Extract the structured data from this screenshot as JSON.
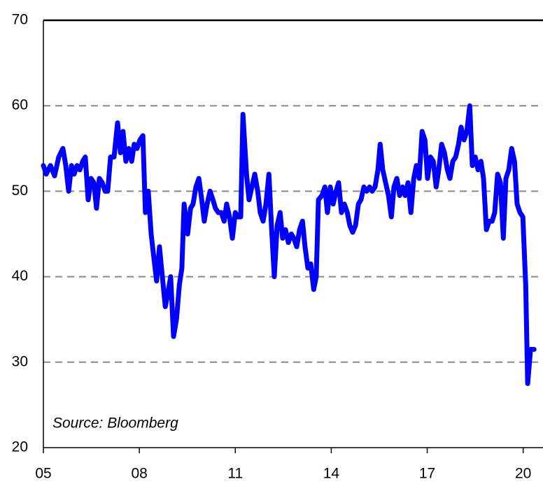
{
  "chart_data": {
    "type": "line",
    "annotation": "Source: Bloomberg",
    "x": [
      2005.0,
      2005.09,
      2005.22,
      2005.35,
      2005.48,
      2005.61,
      2005.7,
      2005.79,
      2005.88,
      2005.96,
      2006.05,
      2006.14,
      2006.23,
      2006.31,
      2006.4,
      2006.49,
      2006.58,
      2006.66,
      2006.75,
      2006.84,
      2006.93,
      2007.01,
      2007.1,
      2007.21,
      2007.32,
      2007.41,
      2007.49,
      2007.58,
      2007.67,
      2007.76,
      2007.84,
      2007.93,
      2008.02,
      2008.11,
      2008.19,
      2008.28,
      2008.37,
      2008.46,
      2008.54,
      2008.63,
      2008.72,
      2008.81,
      2008.89,
      2008.98,
      2009.07,
      2009.16,
      2009.25,
      2009.33,
      2009.4,
      2009.51,
      2009.6,
      2009.68,
      2009.77,
      2009.86,
      2009.95,
      2010.03,
      2010.12,
      2010.21,
      2010.3,
      2010.38,
      2010.47,
      2010.56,
      2010.65,
      2010.73,
      2010.82,
      2010.91,
      2011.0,
      2011.08,
      2011.17,
      2011.24,
      2011.35,
      2011.43,
      2011.52,
      2011.61,
      2011.7,
      2011.78,
      2011.87,
      2011.96,
      2012.05,
      2012.13,
      2012.22,
      2012.31,
      2012.4,
      2012.48,
      2012.57,
      2012.66,
      2012.75,
      2012.83,
      2012.92,
      2013.01,
      2013.1,
      2013.18,
      2013.27,
      2013.36,
      2013.45,
      2013.53,
      2013.6,
      2013.71,
      2013.8,
      2013.88,
      2013.97,
      2014.06,
      2014.15,
      2014.23,
      2014.32,
      2014.41,
      2014.5,
      2014.58,
      2014.67,
      2014.76,
      2014.85,
      2014.93,
      2015.02,
      2015.11,
      2015.2,
      2015.28,
      2015.37,
      2015.46,
      2015.53,
      2015.61,
      2015.7,
      2015.79,
      2015.88,
      2015.96,
      2016.05,
      2016.14,
      2016.23,
      2016.31,
      2016.4,
      2016.49,
      2016.58,
      2016.66,
      2016.75,
      2016.84,
      2016.93,
      2017.01,
      2017.1,
      2017.19,
      2017.28,
      2017.36,
      2017.45,
      2017.54,
      2017.63,
      2017.71,
      2017.8,
      2017.89,
      2017.98,
      2018.06,
      2018.15,
      2018.24,
      2018.33,
      2018.41,
      2018.5,
      2018.59,
      2018.68,
      2018.76,
      2018.85,
      2018.94,
      2019.03,
      2019.11,
      2019.2,
      2019.29,
      2019.38,
      2019.46,
      2019.55,
      2019.64,
      2019.73,
      2019.81,
      2019.9,
      2019.99,
      2020.08,
      2020.14,
      2020.23,
      2020.34
    ],
    "series": [
      {
        "color": "#0000ff",
        "values": [
          53,
          52,
          53,
          51.8,
          54,
          55,
          53,
          50,
          53,
          52,
          53,
          52.5,
          53.5,
          54,
          49,
          51.5,
          51,
          48,
          51.5,
          51,
          50,
          50,
          54,
          54,
          58,
          54.5,
          57,
          53.5,
          55,
          53.5,
          55.5,
          55,
          56,
          56.5,
          47.5,
          50,
          45,
          42,
          39.5,
          43.5,
          40,
          36.5,
          38,
          40,
          33,
          35,
          39,
          41,
          48.5,
          45,
          48,
          48.5,
          50.5,
          51.5,
          49,
          46.5,
          48.5,
          50,
          49,
          48,
          47.5,
          47.5,
          46.5,
          48.5,
          47,
          44.5,
          47.5,
          47,
          47,
          59,
          52,
          49,
          50.5,
          52,
          50,
          47.5,
          46.5,
          48.5,
          52,
          46,
          40,
          46,
          47.5,
          44.5,
          45.5,
          44,
          45,
          44.5,
          43.5,
          45.5,
          46.5,
          43.5,
          41,
          41.5,
          38.5,
          40,
          49,
          49.5,
          50.5,
          47.5,
          50.5,
          48.5,
          50,
          51,
          47.5,
          48.5,
          47.5,
          46,
          45.2,
          46,
          48.5,
          49,
          50.5,
          50,
          50.5,
          50,
          50.5,
          52.5,
          55.5,
          52.5,
          51,
          49.5,
          47,
          50.5,
          51.5,
          49.5,
          50.5,
          49.5,
          51,
          47.5,
          51.5,
          53,
          51.5,
          57,
          56,
          51.5,
          54,
          53.5,
          50.5,
          52.5,
          55.5,
          54.5,
          52.5,
          51.5,
          53.5,
          54,
          55.5,
          57.5,
          56,
          57,
          60,
          53,
          54,
          52.5,
          53.5,
          51.5,
          45.5,
          46.5,
          46.5,
          47.5,
          52,
          51,
          44.5,
          51.5,
          52.5,
          55,
          53.5,
          48.5,
          47.5,
          47,
          39,
          27.5,
          31.5,
          31.5
        ]
      }
    ],
    "xlim": [
      2005,
      2020.62
    ],
    "xticks": [
      {
        "value": 2005,
        "label": "05"
      },
      {
        "value": 2008,
        "label": "08"
      },
      {
        "value": 2011,
        "label": "11"
      },
      {
        "value": 2014,
        "label": "14"
      },
      {
        "value": 2017,
        "label": "17"
      },
      {
        "value": 2020,
        "label": "20"
      }
    ],
    "ylim": [
      20,
      70
    ],
    "yticks": [
      20,
      30,
      40,
      50,
      60,
      70
    ],
    "grid": true
  }
}
